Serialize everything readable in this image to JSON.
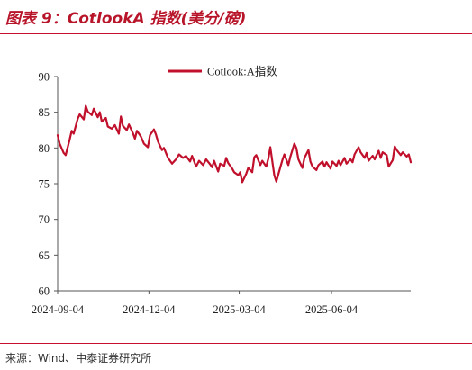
{
  "figure": {
    "title": "图表 9：CotlookA 指数(美分/磅)",
    "source": "来源：Wind、中泰证券研究所"
  },
  "colors": {
    "accent": "#c8102e",
    "series": "#c0102c",
    "title": "#b8152a"
  },
  "chart_data": {
    "type": "line",
    "title": "",
    "xlabel": "",
    "ylabel": "",
    "ylim": [
      60,
      90
    ],
    "yticks": [
      "90",
      "85",
      "80",
      "75",
      "70",
      "65",
      "60"
    ],
    "xticks": [
      "2024-09-04",
      "2024-12-04",
      "2025-03-04",
      "2025-06-04"
    ],
    "xlim": [
      "2024-09-04",
      "2025-08-22"
    ],
    "legend_position": "top-center",
    "grid": false,
    "series": [
      {
        "name": "Cotlook:A指数",
        "points": [
          [
            "2024-09-04",
            81.8
          ],
          [
            "2024-09-06",
            80.6
          ],
          [
            "2024-09-10",
            79.3
          ],
          [
            "2024-09-12",
            79.0
          ],
          [
            "2024-09-16",
            81.2
          ],
          [
            "2024-09-18",
            82.4
          ],
          [
            "2024-09-20",
            82.0
          ],
          [
            "2024-09-24",
            84.1
          ],
          [
            "2024-09-26",
            84.7
          ],
          [
            "2024-09-30",
            84.0
          ],
          [
            "2024-10-02",
            85.9
          ],
          [
            "2024-10-04",
            85.1
          ],
          [
            "2024-10-08",
            84.6
          ],
          [
            "2024-10-10",
            85.5
          ],
          [
            "2024-10-14",
            84.3
          ],
          [
            "2024-10-16",
            85.0
          ],
          [
            "2024-10-18",
            83.7
          ],
          [
            "2024-10-22",
            84.2
          ],
          [
            "2024-10-24",
            83.0
          ],
          [
            "2024-10-28",
            82.7
          ],
          [
            "2024-10-31",
            83.2
          ],
          [
            "2024-11-04",
            82.0
          ],
          [
            "2024-11-06",
            84.4
          ],
          [
            "2024-11-08",
            83.1
          ],
          [
            "2024-11-12",
            82.5
          ],
          [
            "2024-11-14",
            83.3
          ],
          [
            "2024-11-18",
            82.1
          ],
          [
            "2024-11-20",
            81.3
          ],
          [
            "2024-11-22",
            82.4
          ],
          [
            "2024-11-26",
            81.6
          ],
          [
            "2024-11-29",
            80.6
          ],
          [
            "2024-12-03",
            80.1
          ],
          [
            "2024-12-05",
            81.8
          ],
          [
            "2024-12-09",
            82.6
          ],
          [
            "2024-12-11",
            81.9
          ],
          [
            "2024-12-13",
            80.9
          ],
          [
            "2024-12-17",
            79.7
          ],
          [
            "2024-12-19",
            80.0
          ],
          [
            "2024-12-23",
            78.6
          ],
          [
            "2024-12-27",
            77.8
          ],
          [
            "2024-12-31",
            78.4
          ],
          [
            "2025-01-03",
            79.1
          ],
          [
            "2025-01-07",
            78.6
          ],
          [
            "2025-01-10",
            78.9
          ],
          [
            "2025-01-14",
            78.1
          ],
          [
            "2025-01-16",
            78.9
          ],
          [
            "2025-01-20",
            77.4
          ],
          [
            "2025-01-23",
            78.2
          ],
          [
            "2025-01-27",
            77.6
          ],
          [
            "2025-01-30",
            78.4
          ],
          [
            "2025-02-03",
            77.7
          ],
          [
            "2025-02-05",
            77.3
          ],
          [
            "2025-02-07",
            78.2
          ],
          [
            "2025-02-11",
            76.7
          ],
          [
            "2025-02-13",
            77.8
          ],
          [
            "2025-02-17",
            77.5
          ],
          [
            "2025-02-19",
            78.6
          ],
          [
            "2025-02-21",
            77.9
          ],
          [
            "2025-02-25",
            77.1
          ],
          [
            "2025-02-27",
            76.6
          ],
          [
            "2025-03-03",
            76.2
          ],
          [
            "2025-03-05",
            76.6
          ],
          [
            "2025-03-07",
            75.2
          ],
          [
            "2025-03-11",
            76.4
          ],
          [
            "2025-03-13",
            77.2
          ],
          [
            "2025-03-17",
            76.6
          ],
          [
            "2025-03-19",
            78.7
          ],
          [
            "2025-03-21",
            79.0
          ],
          [
            "2025-03-25",
            77.6
          ],
          [
            "2025-03-27",
            78.2
          ],
          [
            "2025-03-31",
            77.4
          ],
          [
            "2025-04-02",
            78.5
          ],
          [
            "2025-04-04",
            80.1
          ],
          [
            "2025-04-08",
            76.2
          ],
          [
            "2025-04-10",
            75.3
          ],
          [
            "2025-04-14",
            77.3
          ],
          [
            "2025-04-16",
            78.3
          ],
          [
            "2025-04-18",
            79.1
          ],
          [
            "2025-04-22",
            77.6
          ],
          [
            "2025-04-24",
            78.8
          ],
          [
            "2025-04-28",
            80.6
          ],
          [
            "2025-04-30",
            80.0
          ],
          [
            "2025-05-02",
            78.4
          ],
          [
            "2025-05-06",
            77.2
          ],
          [
            "2025-05-08",
            78.6
          ],
          [
            "2025-05-12",
            79.7
          ],
          [
            "2025-05-14",
            78.1
          ],
          [
            "2025-05-16",
            77.4
          ],
          [
            "2025-05-20",
            76.9
          ],
          [
            "2025-05-22",
            77.6
          ],
          [
            "2025-05-26",
            78.1
          ],
          [
            "2025-05-28",
            77.4
          ],
          [
            "2025-05-30",
            78.0
          ],
          [
            "2025-06-03",
            77.1
          ],
          [
            "2025-06-05",
            78.1
          ],
          [
            "2025-06-09",
            77.5
          ],
          [
            "2025-06-11",
            78.2
          ],
          [
            "2025-06-13",
            77.6
          ],
          [
            "2025-06-17",
            78.6
          ],
          [
            "2025-06-19",
            77.8
          ],
          [
            "2025-06-23",
            78.4
          ],
          [
            "2025-06-25",
            78.0
          ],
          [
            "2025-06-27",
            79.1
          ],
          [
            "2025-07-01",
            80.1
          ],
          [
            "2025-07-03",
            79.4
          ],
          [
            "2025-07-07",
            78.6
          ],
          [
            "2025-07-09",
            79.3
          ],
          [
            "2025-07-11",
            78.2
          ],
          [
            "2025-07-15",
            78.9
          ],
          [
            "2025-07-17",
            78.4
          ],
          [
            "2025-07-21",
            79.6
          ],
          [
            "2025-07-23",
            78.6
          ],
          [
            "2025-07-25",
            79.4
          ],
          [
            "2025-07-29",
            79.0
          ],
          [
            "2025-07-31",
            77.4
          ],
          [
            "2025-08-04",
            78.3
          ],
          [
            "2025-08-06",
            80.2
          ],
          [
            "2025-08-08",
            79.7
          ],
          [
            "2025-08-12",
            79.0
          ],
          [
            "2025-08-14",
            79.4
          ],
          [
            "2025-08-18",
            78.8
          ],
          [
            "2025-08-20",
            79.1
          ],
          [
            "2025-08-22",
            78.0
          ]
        ]
      }
    ]
  }
}
